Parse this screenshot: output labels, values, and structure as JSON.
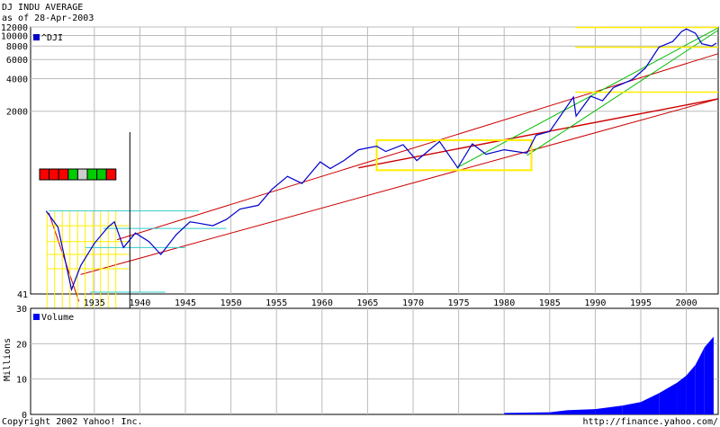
{
  "header": {
    "title": "DJ INDU AVERAGE",
    "subtitle": "as of 28-Apr-2003"
  },
  "footer": {
    "copyright": "Copyright 2002 Yahoo! Inc.",
    "url": "http://finance.yahoo.com/"
  },
  "chart_data": [
    {
      "type": "line",
      "scale": "log",
      "legend": "top-left",
      "grid": true,
      "series": [
        {
          "name": "^DJI",
          "color": "#0000cc",
          "x": [
            1929.7,
            1931,
            1932.5,
            1933.5,
            1935,
            1936.5,
            1937.2,
            1938.2,
            1939.5,
            1941,
            1942.3,
            1944,
            1945.5,
            1946.4,
            1948,
            1949.5,
            1951,
            1953,
            1954.5,
            1956.2,
            1957.8,
            1959.8,
            1960.9,
            1962.4,
            1964,
            1966,
            1967,
            1968.9,
            1970.4,
            1972.9,
            1974.9,
            1976.5,
            1978,
            1980,
            1982.5,
            1983.5,
            1985,
            1987.6,
            1987.9,
            1989.5,
            1990.8,
            1992,
            1994,
            1995.5,
            1997,
            1998.5,
            1999.5,
            2000,
            2001,
            2001.7,
            2002.8,
            2003.3
          ],
          "values": [
            240,
            170,
            45,
            75,
            120,
            170,
            190,
            110,
            150,
            125,
            95,
            145,
            190,
            185,
            175,
            200,
            250,
            270,
            380,
            500,
            430,
            680,
            590,
            700,
            880,
            950,
            850,
            980,
            700,
            1050,
            600,
            1000,
            800,
            880,
            820,
            1200,
            1300,
            2700,
            1800,
            2750,
            2500,
            3300,
            3900,
            5000,
            7800,
            8800,
            10900,
            11500,
            10500,
            8400,
            8000,
            8500
          ],
          "ylim": [
            41,
            12000
          ],
          "yticks": [
            41,
            2000,
            4000,
            6000,
            8000,
            10000,
            12000
          ],
          "xticks": [
            1935,
            1940,
            1945,
            1950,
            1955,
            1960,
            1965,
            1970,
            1975,
            1980,
            1985,
            1990,
            1995,
            2000
          ],
          "xlim": [
            1928,
            2003.5
          ]
        }
      ]
    },
    {
      "type": "bar",
      "ylabel": "Millions",
      "legend": "top-left",
      "series": [
        {
          "name": "Volume",
          "color": "#0000ff",
          "x": [
            1980,
            1985,
            1987,
            1990,
            1993,
            1995,
            1997,
            1999,
            2000,
            2001,
            2002,
            2003
          ],
          "values": [
            0.4,
            0.6,
            1.2,
            1.5,
            2.5,
            3.5,
            6,
            9,
            11,
            14,
            19,
            22
          ]
        }
      ],
      "ylim": [
        0,
        30
      ],
      "yticks": [
        0,
        10,
        20,
        30
      ]
    }
  ],
  "overlay": {
    "red_channel_color": "#cc0000",
    "green_channel_color": "#00bb00",
    "yellow_color": "#ffee00",
    "cyan_color": "#33cccc",
    "legend_boxes": [
      "#ff0000",
      "#ff0000",
      "#ff0000",
      "#00cc00",
      "#cccccc",
      "#00cc00",
      "#00cc00",
      "#ff0000"
    ]
  }
}
